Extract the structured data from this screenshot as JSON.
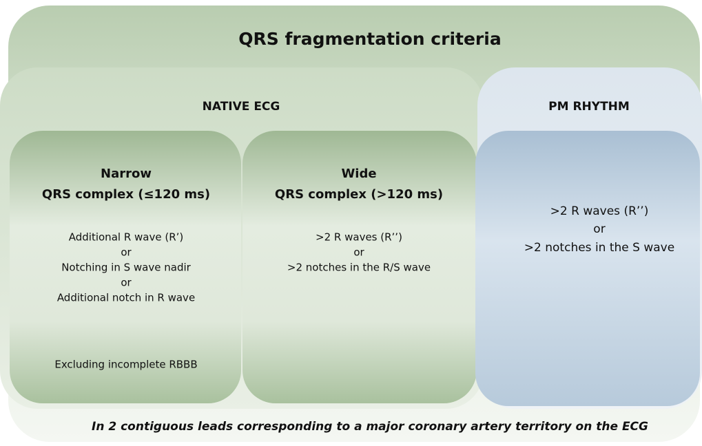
{
  "title": "QRS fragmentation criteria",
  "native_ecg": {
    "label": "NATIVE ECG",
    "narrow": {
      "heading": [
        "Narrow",
        "QRS complex (≤120 ms)"
      ],
      "criteria": [
        "Additional R wave (R’)",
        "or",
        "Notching in S wave nadir",
        "or",
        "Additional notch in R wave"
      ],
      "note": "Excluding incomplete RBBB"
    },
    "wide": {
      "heading": [
        "Wide",
        "QRS complex (>120 ms)"
      ],
      "criteria": [
        ">2 R waves (R’’)",
        "or",
        ">2 notches in the R/S wave"
      ]
    }
  },
  "pm_rhythm": {
    "label": "PM RHYTHM",
    "criteria": [
      ">2 R waves (R’’)",
      "or",
      ">2 notches in the S wave"
    ]
  },
  "footer": "In 2 contiguous leads corresponding to a major coronary artery territory on the ECG"
}
